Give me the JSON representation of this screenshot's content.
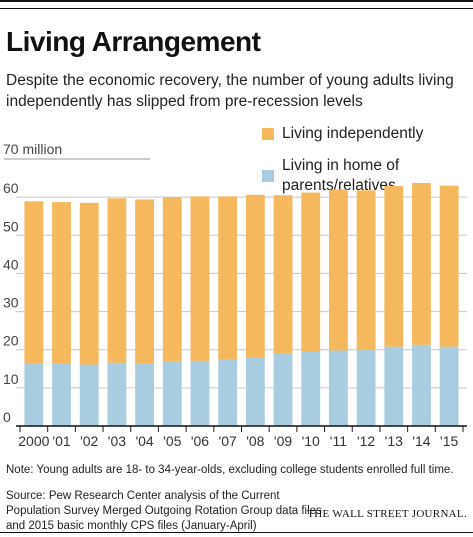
{
  "chart_data": {
    "type": "bar",
    "stacked": true,
    "title": "Living Arrangement",
    "subtitle": "Despite the economic recovery, the number of young adults living independently has slipped from pre-recession levels",
    "categories": [
      "2000",
      "'01",
      "'02",
      "'03",
      "'04",
      "'05",
      "'06",
      "'07",
      "'08",
      "'09",
      "'10",
      "'11",
      "'12",
      "'13",
      "'14",
      "'15"
    ],
    "series": [
      {
        "name": "Living in home of parents/relatives",
        "color": "#a9cde0",
        "values": [
          16.5,
          16.3,
          16.1,
          16.6,
          16.5,
          16.8,
          17.1,
          17.4,
          18.1,
          18.9,
          19.4,
          19.8,
          19.9,
          20.8,
          21.3,
          20.8
        ]
      },
      {
        "name": "Living independently",
        "color": "#f5b85c",
        "values": [
          42.4,
          42.4,
          42.4,
          43.1,
          42.9,
          43.2,
          43.1,
          42.8,
          42.5,
          41.6,
          41.8,
          42.2,
          41.9,
          42.1,
          42.4,
          42.2
        ]
      }
    ],
    "ylim": [
      0,
      70
    ],
    "yticks": [
      "0",
      "10",
      "20",
      "30",
      "40",
      "50",
      "60"
    ],
    "ytick_values": [
      0,
      10,
      20,
      30,
      40,
      50,
      60
    ],
    "ytop_label": "70 million",
    "grid": true,
    "legend": "top-right"
  },
  "note": "Note: Young adults are 18- to 34-year-olds, excluding college students enrolled full time.",
  "source": "Source: Pew Research Center analysis of the Current Population Survey Merged Outgoing Rotation Group data files and 2015 basic monthly CPS files (January-April)",
  "credit": "THE WALL STREET JOURNAL."
}
